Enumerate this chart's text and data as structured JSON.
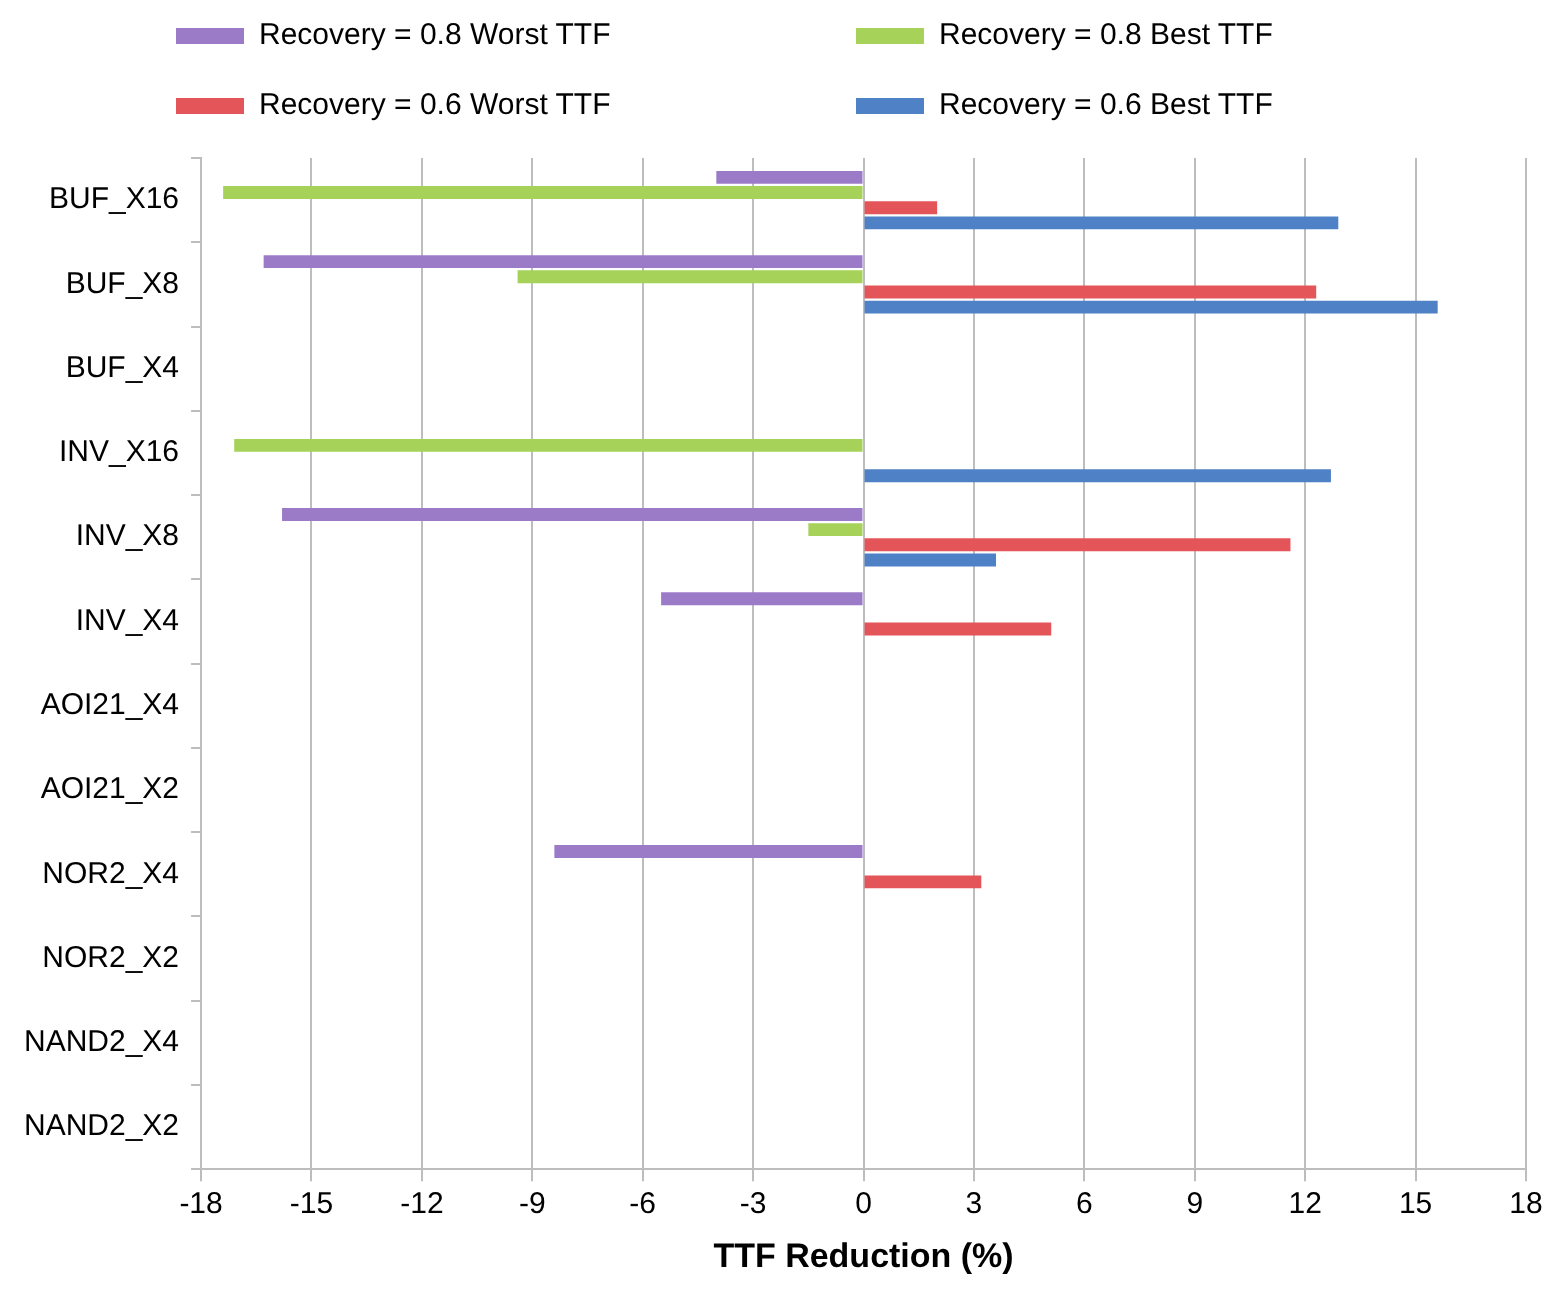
{
  "chart_data": {
    "type": "bar",
    "orientation": "horizontal",
    "xlabel": "TTF Reduction (%)",
    "categories": [
      "BUF_X16",
      "BUF_X8",
      "BUF_X4",
      "INV_X16",
      "INV_X8",
      "INV_X4",
      "AOI21_X4",
      "AOI21_X2",
      "NOR2_X4",
      "NOR2_X2",
      "NAND2_X4",
      "NAND2_X2"
    ],
    "series": [
      {
        "name": "Recovery = 0.8 Worst TTF",
        "color": "#9b7bc8",
        "values": [
          -4.0,
          -16.3,
          null,
          null,
          -15.8,
          -5.5,
          null,
          null,
          -8.4,
          null,
          null,
          null
        ]
      },
      {
        "name": "Recovery = 0.8 Best TTF",
        "color": "#a6d25a",
        "values": [
          -17.4,
          -9.4,
          null,
          -17.1,
          -1.5,
          null,
          null,
          null,
          null,
          null,
          null,
          null
        ]
      },
      {
        "name": "Recovery = 0.6 Worst TTF",
        "color": "#e4555a",
        "values": [
          2.0,
          12.3,
          null,
          null,
          11.6,
          5.1,
          null,
          null,
          3.2,
          null,
          null,
          null
        ]
      },
      {
        "name": "Recovery = 0.6 Best TTF",
        "color": "#4f81c6",
        "values": [
          12.9,
          15.6,
          null,
          12.7,
          3.6,
          null,
          null,
          null,
          null,
          null,
          null,
          null
        ]
      }
    ],
    "xlim": [
      -18,
      18
    ],
    "xticks": [
      -18,
      -15,
      -12,
      -9,
      -6,
      -3,
      0,
      3,
      6,
      9,
      12,
      15,
      18
    ],
    "grid": "x",
    "legend": "top"
  }
}
